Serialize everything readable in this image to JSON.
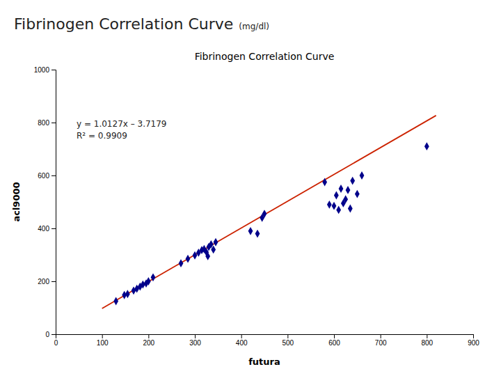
{
  "chart_data": {
    "type": "scatter",
    "title": "Fibrinogen Correlation Curve",
    "subtitle": "(mg/dl)",
    "x_label": "futura",
    "y_label": "acl9000",
    "annotations": [
      "y = 1.0127x – 3.7179",
      "R² = 0.9909"
    ],
    "series": [
      {
        "type": "scatter",
        "color": "#00008B",
        "marker": "diamond",
        "x": [
          130,
          148,
          155,
          168,
          175,
          182,
          188,
          195,
          200,
          210,
          270,
          285,
          300,
          308,
          315,
          320,
          325,
          328,
          330,
          335,
          340,
          345,
          420,
          435,
          445,
          450,
          580,
          590,
          600,
          605,
          610,
          615,
          620,
          625,
          630,
          635,
          640,
          650,
          660,
          800
        ],
        "values": [
          125,
          148,
          152,
          165,
          172,
          180,
          188,
          192,
          200,
          215,
          268,
          285,
          298,
          308,
          318,
          322,
          310,
          295,
          330,
          340,
          320,
          348,
          390,
          380,
          440,
          455,
          575,
          490,
          485,
          525,
          470,
          550,
          495,
          510,
          545,
          475,
          580,
          530,
          600,
          710
        ]
      },
      {
        "type": "line",
        "color": "#cc2200",
        "line_style": "solid",
        "x": [
          100,
          820
        ],
        "values": [
          97.5521,
          826.6961
        ]
      }
    ],
    "xlim": [
      0,
      900
    ],
    "ylim": [
      0,
      1000
    ],
    "xticks": [
      0,
      100,
      200,
      300,
      400,
      500,
      600,
      700,
      800,
      900
    ],
    "yticks": [
      0,
      200,
      400,
      600,
      800,
      1000
    ],
    "grid": false
  }
}
